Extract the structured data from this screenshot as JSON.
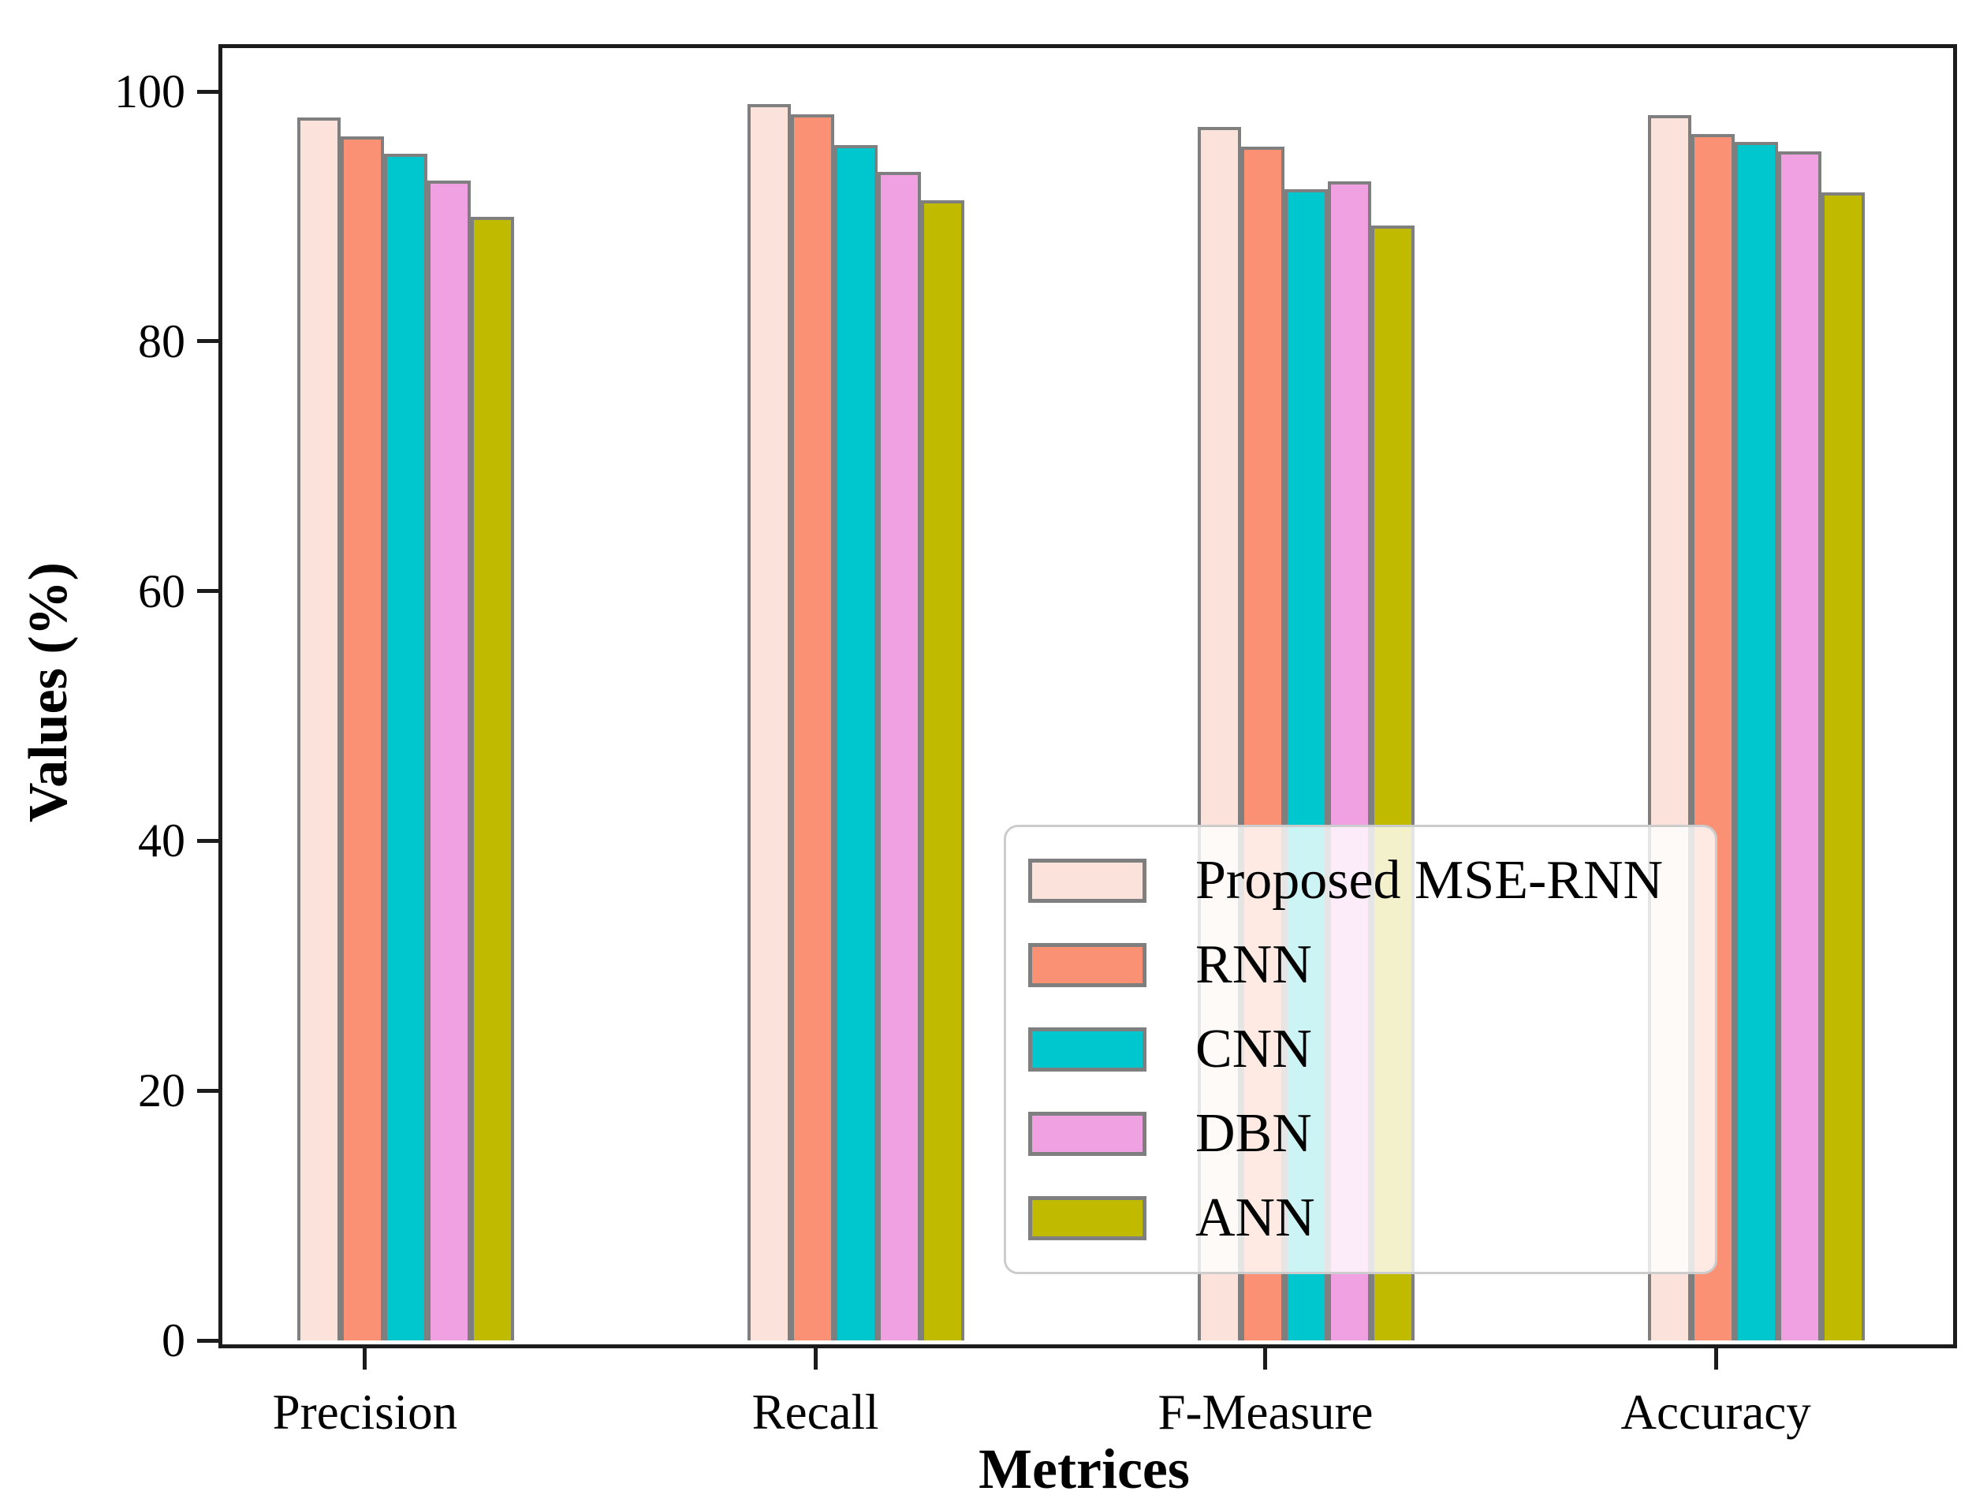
{
  "chart_data": {
    "type": "bar",
    "title": "",
    "xlabel": "Metrices",
    "ylabel": "Values (%)",
    "categories": [
      "Precision",
      "Recall",
      "F-Measure",
      "Accuracy"
    ],
    "series": [
      {
        "name": "Proposed MSE-RNN",
        "color": "#fbe3dc",
        "values": [
          97.9,
          99.0,
          97.2,
          98.1
        ]
      },
      {
        "name": "RNN",
        "color": "#fa9174",
        "values": [
          96.4,
          98.2,
          95.6,
          96.6
        ]
      },
      {
        "name": "CNN",
        "color": "#00c6cd",
        "values": [
          95.0,
          95.7,
          92.2,
          96.0
        ]
      },
      {
        "name": "DBN",
        "color": "#efa1e2",
        "values": [
          92.9,
          93.6,
          92.8,
          95.2
        ]
      },
      {
        "name": "ANN",
        "color": "#c0ba00",
        "values": [
          90.0,
          91.3,
          89.3,
          91.9
        ]
      }
    ],
    "yticks": [
      0,
      20,
      40,
      60,
      80,
      100
    ],
    "ylim": [
      0,
      100
    ],
    "grid": false,
    "legend_position": "lower right",
    "bar_edge_color": "#7f7f7f",
    "axis_color": "#1c1c1c"
  }
}
